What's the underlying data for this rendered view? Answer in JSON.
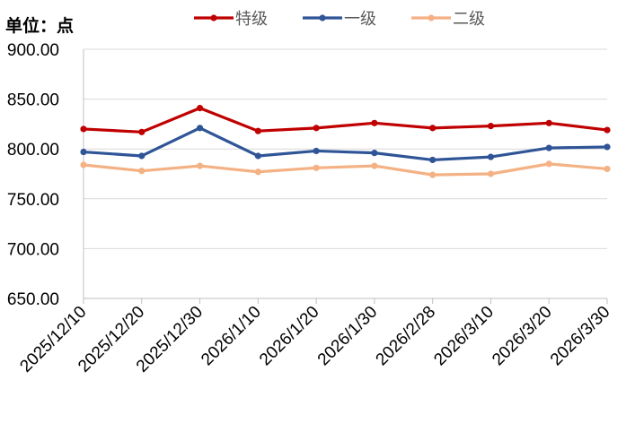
{
  "unit_label": "单位：点",
  "chart_data": {
    "type": "line",
    "title": "",
    "xlabel": "",
    "ylabel": "单位：点",
    "ylim": [
      650,
      900
    ],
    "ystep": 50,
    "ytick_labels": [
      "650.00",
      "700.00",
      "750.00",
      "800.00",
      "850.00",
      "900.00"
    ],
    "categories": [
      "2025/12/10",
      "2025/12/20",
      "2025/12/30",
      "2026/1/10",
      "2026/1/20",
      "2026/1/30",
      "2026/2/28",
      "2026/3/10",
      "2026/3/20",
      "2026/3/30"
    ],
    "legend_position": "top",
    "series": [
      {
        "name": "特级",
        "color": "#C00000",
        "values": [
          820,
          817,
          841,
          818,
          821,
          826,
          821,
          823,
          826,
          819
        ]
      },
      {
        "name": "一级",
        "color": "#2F5597",
        "values": [
          797,
          793,
          821,
          793,
          798,
          796,
          789,
          792,
          801,
          802
        ]
      },
      {
        "name": "二级",
        "color": "#F4B183",
        "values": [
          784,
          778,
          783,
          777,
          781,
          783,
          774,
          775,
          785,
          780
        ]
      }
    ]
  }
}
